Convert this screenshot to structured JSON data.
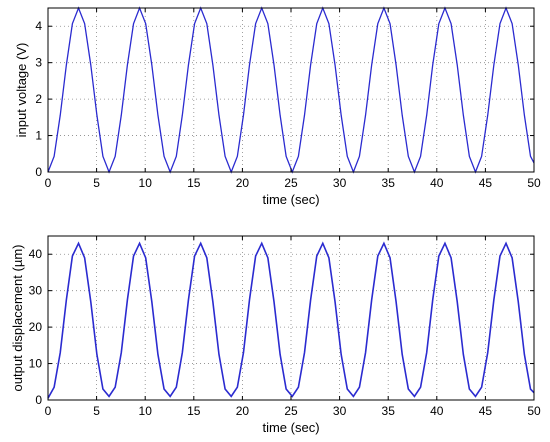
{
  "chart_data": [
    {
      "type": "line",
      "xlabel": "time (sec)",
      "ylabel": "input voltage (V)",
      "xlim": [
        0,
        50
      ],
      "ylim": [
        0,
        4.5
      ],
      "xticks": [
        "0",
        "5",
        "10",
        "15",
        "20",
        "25",
        "30",
        "35",
        "40",
        "45",
        "50"
      ],
      "yticks": [
        "0",
        "1",
        "2",
        "3",
        "4"
      ],
      "grid": true,
      "series": [
        {
          "color": "#2b2bd0",
          "x": [
            0,
            0.63,
            1.26,
            1.89,
            2.51,
            3.14,
            3.77,
            4.4,
            5.03,
            5.65,
            6.28,
            6.91,
            7.54,
            8.17,
            8.8,
            9.42,
            10.05,
            10.68,
            11.31,
            11.94,
            12.57,
            13.2,
            13.82,
            14.45,
            15.08,
            15.71,
            16.34,
            16.96,
            17.59,
            18.22,
            18.85,
            19.48,
            20.11,
            20.73,
            21.36,
            21.99,
            22.62,
            23.25,
            23.88,
            24.5,
            25.13,
            25.76,
            26.39,
            27.02,
            27.65,
            28.27,
            28.9,
            29.53,
            30.16,
            30.79,
            31.42,
            32.04,
            32.67,
            33.3,
            33.93,
            34.56,
            35.19,
            35.81,
            36.44,
            37.07,
            37.7,
            38.33,
            38.96,
            39.58,
            40.21,
            40.84,
            41.47,
            42.1,
            42.73,
            43.35,
            43.98,
            44.61,
            45.24,
            45.87,
            46.5,
            47.12,
            47.75,
            48.38,
            49.01,
            49.64,
            50.0
          ],
          "y": [
            0,
            0.43,
            1.56,
            2.94,
            4.07,
            4.5,
            4.07,
            2.94,
            1.56,
            0.43,
            0,
            0.43,
            1.56,
            2.94,
            4.07,
            4.5,
            4.07,
            2.94,
            1.56,
            0.43,
            0,
            0.43,
            1.56,
            2.94,
            4.07,
            4.5,
            4.07,
            2.94,
            1.56,
            0.43,
            0,
            0.43,
            1.56,
            2.94,
            4.07,
            4.5,
            4.07,
            2.94,
            1.56,
            0.43,
            0,
            0.43,
            1.56,
            2.94,
            4.07,
            4.5,
            4.07,
            2.94,
            1.56,
            0.43,
            0,
            0.43,
            1.56,
            2.94,
            4.07,
            4.5,
            4.07,
            2.94,
            1.56,
            0.43,
            0,
            0.43,
            1.56,
            2.94,
            4.07,
            4.5,
            4.07,
            2.94,
            1.56,
            0.43,
            0,
            0.43,
            1.56,
            2.94,
            4.07,
            4.5,
            4.07,
            2.94,
            1.56,
            0.43,
            0.25
          ]
        }
      ]
    },
    {
      "type": "line",
      "xlabel": "time (sec)",
      "ylabel": "output displacement (µm)",
      "xlim": [
        0,
        50
      ],
      "ylim": [
        0,
        45
      ],
      "xticks": [
        "0",
        "5",
        "10",
        "15",
        "20",
        "25",
        "30",
        "35",
        "40",
        "45",
        "50"
      ],
      "yticks": [
        "0",
        "10",
        "20",
        "30",
        "40"
      ],
      "grid": true,
      "series": [
        {
          "color": "#2b2bd0",
          "x": [
            0,
            0.63,
            1.26,
            1.89,
            2.51,
            3.14,
            3.77,
            4.4,
            5.03,
            5.65,
            6.28,
            6.91,
            7.54,
            8.17,
            8.8,
            9.42,
            10.05,
            10.68,
            11.31,
            11.94,
            12.57,
            13.2,
            13.82,
            14.45,
            15.08,
            15.71,
            16.34,
            16.96,
            17.59,
            18.22,
            18.85,
            19.48,
            20.11,
            20.73,
            21.36,
            21.99,
            22.62,
            23.25,
            23.88,
            24.5,
            25.13,
            25.76,
            26.39,
            27.02,
            27.65,
            28.27,
            28.9,
            29.53,
            30.16,
            30.79,
            31.42,
            32.04,
            32.67,
            33.3,
            33.93,
            34.56,
            35.19,
            35.81,
            36.44,
            37.07,
            37.7,
            38.33,
            38.96,
            39.58,
            40.21,
            40.84,
            41.47,
            42.1,
            42.73,
            43.35,
            43.98,
            44.61,
            45.24,
            45.87,
            46.5,
            47.12,
            47.75,
            48.38,
            49.01,
            49.64,
            50.0
          ],
          "y": [
            0.5,
            3.5,
            13.0,
            27.5,
            39.5,
            43.0,
            39.0,
            27.0,
            12.5,
            3.0,
            1.0,
            3.5,
            13.0,
            27.5,
            39.5,
            43.0,
            39.0,
            27.0,
            12.5,
            3.0,
            1.0,
            3.5,
            13.0,
            27.5,
            39.5,
            43.0,
            39.0,
            27.0,
            12.5,
            3.0,
            1.0,
            3.5,
            13.0,
            27.5,
            39.5,
            43.0,
            39.0,
            27.0,
            12.5,
            3.0,
            1.0,
            3.5,
            13.0,
            27.5,
            39.5,
            43.0,
            39.0,
            27.0,
            12.5,
            3.0,
            1.0,
            3.5,
            13.0,
            27.5,
            39.5,
            43.0,
            39.0,
            27.0,
            12.5,
            3.0,
            1.0,
            3.5,
            13.0,
            27.5,
            39.5,
            43.0,
            39.0,
            27.0,
            12.5,
            3.0,
            1.0,
            3.5,
            13.0,
            27.5,
            39.5,
            43.0,
            39.0,
            27.0,
            12.5,
            3.0,
            2.0
          ]
        }
      ]
    }
  ]
}
